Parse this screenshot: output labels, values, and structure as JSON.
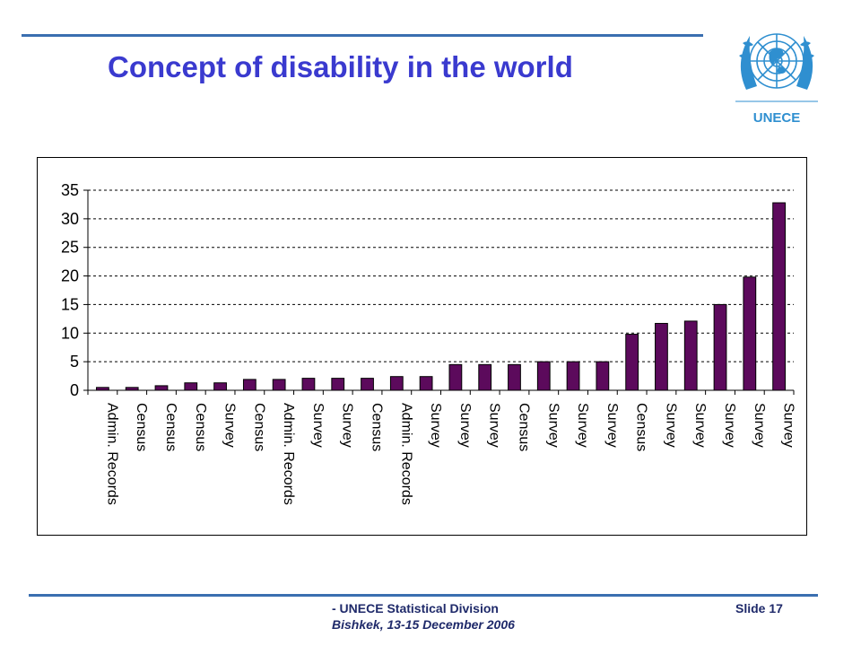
{
  "slide": {
    "title": "Concept of disability in the world",
    "footer_org": "- UNECE Statistical Division",
    "footer_place": "Bishkek, 13-15 December 2006",
    "slide_number": "Slide 17",
    "logo_text": "UNECE"
  },
  "colors": {
    "rule": "#3a6fb0",
    "title": "#3a3acf",
    "bar_fill": "#5c0a5c",
    "logo_blue": "#2f8fd0"
  },
  "chart_data": {
    "type": "bar",
    "categories": [
      "Admin. Records",
      "Census",
      "Census",
      "Census",
      "Survey",
      "Census",
      "Admin. Records",
      "Survey",
      "Survey",
      "Census",
      "Admin. Records",
      "Survey",
      "Survey",
      "Survey",
      "Census",
      "Survey",
      "Survey",
      "Survey",
      "Census",
      "Survey",
      "Survey",
      "Survey",
      "Survey",
      "Survey"
    ],
    "values": [
      0.5,
      0.5,
      0.8,
      1.3,
      1.3,
      1.9,
      1.9,
      2.1,
      2.1,
      2.1,
      2.4,
      2.4,
      4.5,
      4.5,
      4.5,
      5.0,
      5.0,
      5.0,
      9.8,
      11.7,
      12.1,
      15.0,
      19.8,
      32.8
    ],
    "ylim": [
      0,
      35
    ],
    "yticks": [
      0,
      5,
      10,
      15,
      20,
      25,
      30,
      35
    ],
    "grid": "horizontal dashed",
    "legend": "none"
  }
}
